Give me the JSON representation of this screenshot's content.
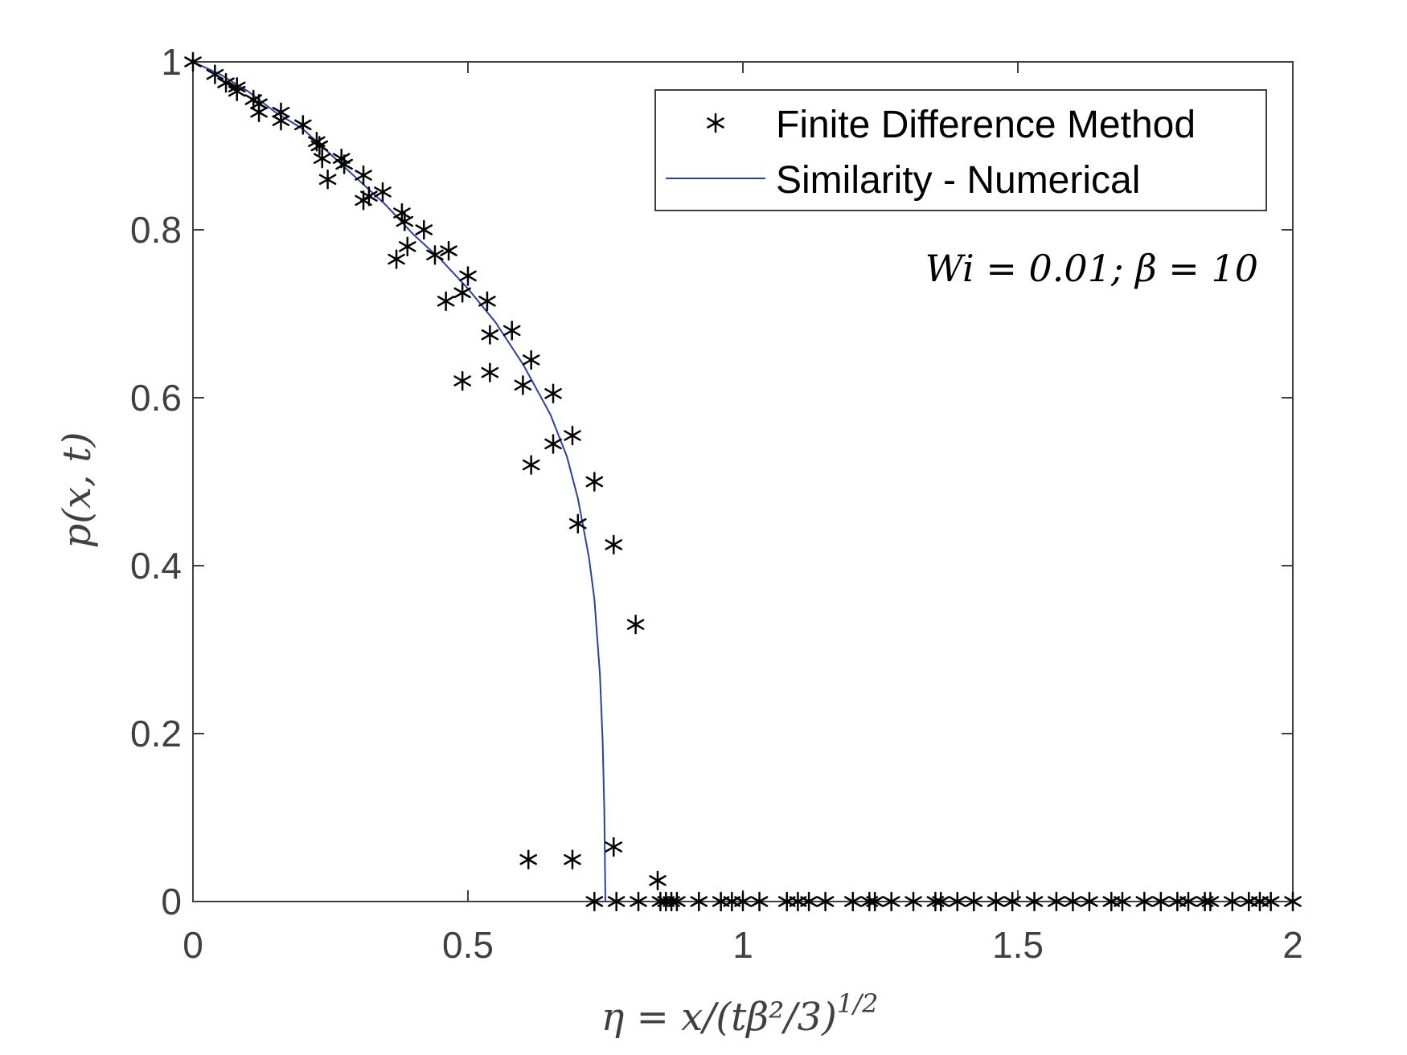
{
  "chart_data": {
    "type": "scatter",
    "xlabel": "η = x/(tβ²/3)",
    "xlabel_exponent": "1/2",
    "ylabel": "p(x, t)",
    "xlim": [
      0,
      2
    ],
    "ylim": [
      0,
      1
    ],
    "xticks": [
      0,
      0.5,
      1,
      1.5,
      2
    ],
    "xtick_labels": [
      "0",
      "0.5",
      "1",
      "1.5",
      "2"
    ],
    "yticks": [
      0,
      0.2,
      0.4,
      0.6,
      0.8,
      1
    ],
    "ytick_labels": [
      "0",
      "0.2",
      "0.4",
      "0.6",
      "0.8",
      "1"
    ],
    "grid": false,
    "legend_position": "top-right",
    "annotation": "Wi = 0.01; β = 10",
    "colors": {
      "markers": "#000000",
      "line": "#2b3f9e",
      "axes": "#404040"
    },
    "series": [
      {
        "name": "Finite Difference Method",
        "marker": "asterisk",
        "points": [
          [
            0.0,
            1.0
          ],
          [
            0.04,
            0.985
          ],
          [
            0.06,
            0.975
          ],
          [
            0.08,
            0.965
          ],
          [
            0.08,
            0.97
          ],
          [
            0.11,
            0.955
          ],
          [
            0.12,
            0.95
          ],
          [
            0.12,
            0.94
          ],
          [
            0.16,
            0.94
          ],
          [
            0.16,
            0.93
          ],
          [
            0.2,
            0.925
          ],
          [
            0.225,
            0.905
          ],
          [
            0.23,
            0.9
          ],
          [
            0.235,
            0.885
          ],
          [
            0.245,
            0.86
          ],
          [
            0.27,
            0.885
          ],
          [
            0.275,
            0.878
          ],
          [
            0.31,
            0.865
          ],
          [
            0.31,
            0.835
          ],
          [
            0.32,
            0.84
          ],
          [
            0.345,
            0.845
          ],
          [
            0.37,
            0.765
          ],
          [
            0.38,
            0.82
          ],
          [
            0.385,
            0.81
          ],
          [
            0.39,
            0.78
          ],
          [
            0.42,
            0.8
          ],
          [
            0.44,
            0.77
          ],
          [
            0.46,
            0.715
          ],
          [
            0.465,
            0.775
          ],
          [
            0.49,
            0.725
          ],
          [
            0.49,
            0.62
          ],
          [
            0.5,
            0.745
          ],
          [
            0.535,
            0.715
          ],
          [
            0.54,
            0.63
          ],
          [
            0.54,
            0.675
          ],
          [
            0.58,
            0.68
          ],
          [
            0.6,
            0.615
          ],
          [
            0.615,
            0.645
          ],
          [
            0.615,
            0.52
          ],
          [
            0.61,
            0.05
          ],
          [
            0.655,
            0.605
          ],
          [
            0.655,
            0.545
          ],
          [
            0.69,
            0.555
          ],
          [
            0.69,
            0.05
          ],
          [
            0.7,
            0.45
          ],
          [
            0.73,
            0.5
          ],
          [
            0.765,
            0.425
          ],
          [
            0.765,
            0.065
          ],
          [
            0.805,
            0.33
          ],
          [
            0.845,
            0.025
          ],
          [
            0.73,
            0.0
          ],
          [
            0.77,
            0.0
          ],
          [
            0.81,
            0.0
          ],
          [
            0.85,
            0.0
          ],
          [
            0.86,
            0.0
          ],
          [
            0.87,
            0.0
          ],
          [
            0.88,
            0.0
          ],
          [
            0.92,
            0.0
          ],
          [
            0.96,
            0.0
          ],
          [
            0.98,
            0.0
          ],
          [
            1.0,
            0.0
          ],
          [
            1.03,
            0.0
          ],
          [
            1.08,
            0.0
          ],
          [
            1.1,
            0.0
          ],
          [
            1.12,
            0.0
          ],
          [
            1.15,
            0.0
          ],
          [
            1.2,
            0.0
          ],
          [
            1.23,
            0.0
          ],
          [
            1.24,
            0.0
          ],
          [
            1.27,
            0.0
          ],
          [
            1.31,
            0.0
          ],
          [
            1.35,
            0.0
          ],
          [
            1.36,
            0.0
          ],
          [
            1.39,
            0.0
          ],
          [
            1.42,
            0.0
          ],
          [
            1.46,
            0.0
          ],
          [
            1.49,
            0.0
          ],
          [
            1.53,
            0.0
          ],
          [
            1.57,
            0.0
          ],
          [
            1.6,
            0.0
          ],
          [
            1.63,
            0.0
          ],
          [
            1.67,
            0.0
          ],
          [
            1.69,
            0.0
          ],
          [
            1.73,
            0.0
          ],
          [
            1.76,
            0.0
          ],
          [
            1.79,
            0.0
          ],
          [
            1.81,
            0.0
          ],
          [
            1.84,
            0.0
          ],
          [
            1.85,
            0.0
          ],
          [
            1.89,
            0.0
          ],
          [
            1.92,
            0.0
          ],
          [
            1.94,
            0.0
          ],
          [
            1.96,
            0.0
          ],
          [
            2.0,
            0.0
          ]
        ]
      },
      {
        "name": "Similarity - Numerical",
        "line": "solid",
        "points": [
          [
            0.0,
            1.0
          ],
          [
            0.05,
            0.985
          ],
          [
            0.1,
            0.965
          ],
          [
            0.15,
            0.94
          ],
          [
            0.2,
            0.92
          ],
          [
            0.25,
            0.89
          ],
          [
            0.3,
            0.86
          ],
          [
            0.35,
            0.83
          ],
          [
            0.4,
            0.795
          ],
          [
            0.45,
            0.765
          ],
          [
            0.5,
            0.73
          ],
          [
            0.55,
            0.69
          ],
          [
            0.6,
            0.64
          ],
          [
            0.65,
            0.58
          ],
          [
            0.68,
            0.53
          ],
          [
            0.7,
            0.48
          ],
          [
            0.72,
            0.41
          ],
          [
            0.73,
            0.36
          ],
          [
            0.74,
            0.27
          ],
          [
            0.745,
            0.19
          ],
          [
            0.748,
            0.11
          ],
          [
            0.75,
            0.0
          ]
        ]
      }
    ]
  }
}
